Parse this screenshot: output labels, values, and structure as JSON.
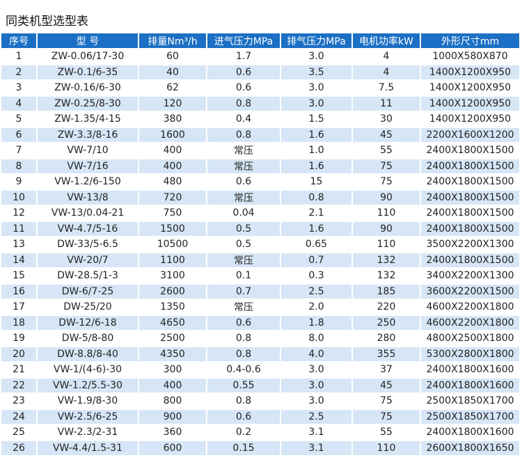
{
  "title": "同类机型选型表",
  "table": {
    "header": [
      "序号",
      "型 号",
      "排量Nm³/h",
      "进气压力MPa",
      "排气压力MPa",
      "电机功率kW",
      "外形尺寸mm"
    ],
    "rows": [
      [
        "1",
        "ZW-0.06/17-30",
        "60",
        "1.7",
        "3.0",
        "4",
        "1000X580X870"
      ],
      [
        "2",
        "ZW-0.1/6-35",
        "40",
        "0.6",
        "3.5",
        "4",
        "1400X1200X950"
      ],
      [
        "3",
        "ZW-0.16/6-30",
        "62",
        "0.6",
        "3.0",
        "7.5",
        "1400X1200X950"
      ],
      [
        "4",
        "ZW-0.25/8-30",
        "120",
        "0.8",
        "3.0",
        "11",
        "1400X1200X950"
      ],
      [
        "5",
        "ZW-1.35/4-15",
        "380",
        "0.4",
        "1.5",
        "30",
        "1400X1200X950"
      ],
      [
        "6",
        "ZW-3.3/8-16",
        "1600",
        "0.8",
        "1.6",
        "45",
        "2200X1600X1200"
      ],
      [
        "7",
        "VW-7/10",
        "400",
        "常压",
        "1.0",
        "55",
        "2400X1800X1500"
      ],
      [
        "8",
        "VW-7/16",
        "400",
        "常压",
        "1.6",
        "75",
        "2400X1800X1500"
      ],
      [
        "9",
        "VW-1.2/6-150",
        "480",
        "0.6",
        "15",
        "75",
        "2400X1800X1500"
      ],
      [
        "10",
        "VW-13/8",
        "720",
        "常压",
        "0.8",
        "90",
        "2400X1800X1500"
      ],
      [
        "12",
        "VW-13/0.04-21",
        "750",
        "0.04",
        "2.1",
        "110",
        "2400X1800X1500"
      ],
      [
        "11",
        "VW-4.7/5-16",
        "1500",
        "0.5",
        "1.6",
        "90",
        "2400X1800X1500"
      ],
      [
        "13",
        "DW-33/5-6.5",
        "10500",
        "0.5",
        "0.65",
        "110",
        "3500X2200X1300"
      ],
      [
        "14",
        "VW-20/7",
        "1100",
        "常压",
        "0.7",
        "132",
        "2400X1800X1500"
      ],
      [
        "15",
        "DW-28.5/1-3",
        "3100",
        "0.1",
        "0.3",
        "132",
        "3400X2200X1300"
      ],
      [
        "16",
        "DW-6/7-25",
        "2600",
        "0.7",
        "2.5",
        "185",
        "3600X2200X1500"
      ],
      [
        "17",
        "DW-25/20",
        "1350",
        "常压",
        "2.0",
        "220",
        "4600X2200X1800"
      ],
      [
        "18",
        "DW-12/6-18",
        "4650",
        "0.6",
        "1.8",
        "250",
        "4600X2200X1800"
      ],
      [
        "19",
        "DW-5/8-80",
        "2500",
        "0.8",
        "8.0",
        "280",
        "4800X2500X1800"
      ],
      [
        "20",
        "DW-8.8/8-40",
        "4350",
        "0.8",
        "4.0",
        "355",
        "5300X2800X1800"
      ],
      [
        "21",
        "VW-1/(4-6)-30",
        "300",
        "0.4-0.6",
        "3.0",
        "37",
        "2400X1800X1600"
      ],
      [
        "22",
        "VW-1.2/5.5-30",
        "400",
        "0.55",
        "3.0",
        "45",
        "2400X1800X1600"
      ],
      [
        "23",
        "VW-1.9/8-30",
        "800",
        "0.8",
        "3.0",
        "75",
        "2500X1850X1700"
      ],
      [
        "24",
        "VW-2.5/6-25",
        "900",
        "0.6",
        "2.5",
        "75",
        "2500X1850X1700"
      ],
      [
        "25",
        "VW-2.3/2-31",
        "360",
        "0.2",
        "3.1",
        "55",
        "2400X1800X1600"
      ],
      [
        "26",
        "VW-4.4/1.5-31",
        "600",
        "0.15",
        "3.1",
        "110",
        "2600X1800X1650"
      ]
    ]
  }
}
